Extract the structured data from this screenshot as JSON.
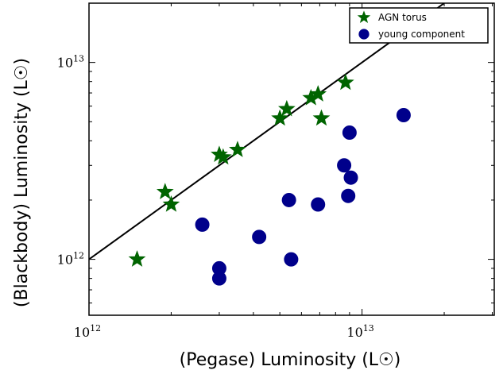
{
  "chart_data": {
    "type": "scatter",
    "title": "",
    "xlabel": "(Pegase) Luminosity (L☉)",
    "ylabel": "(Blackbody) Luminosity (L☉)",
    "xscale": "log",
    "yscale": "log",
    "xlim": [
      1000000000000.0,
      30500000000000.0
    ],
    "ylim": [
      520000000000.0,
      20000000000000.0
    ],
    "x_ticks": [
      {
        "value": 1000000000000.0,
        "base": "10",
        "exp": "12"
      },
      {
        "value": 10000000000000.0,
        "base": "10",
        "exp": "13"
      }
    ],
    "y_ticks": [
      {
        "value": 1000000000000.0,
        "base": "10",
        "exp": "12"
      },
      {
        "value": 10000000000000.0,
        "base": "10",
        "exp": "13"
      }
    ],
    "legend_position": "top-right",
    "one_to_one_line": true,
    "series": [
      {
        "name": "AGN torus",
        "marker": "star",
        "color": "#006400",
        "points": [
          [
            1500000000000.0,
            1000000000000.0
          ],
          [
            1900000000000.0,
            2200000000000.0
          ],
          [
            2000000000000.0,
            1900000000000.0
          ],
          [
            3000000000000.0,
            3400000000000.0
          ],
          [
            3100000000000.0,
            3300000000000.0
          ],
          [
            3500000000000.0,
            3600000000000.0
          ],
          [
            5000000000000.0,
            5200000000000.0
          ],
          [
            5300000000000.0,
            5800000000000.0
          ],
          [
            6500000000000.0,
            6600000000000.0
          ],
          [
            6900000000000.0,
            6900000000000.0
          ],
          [
            7100000000000.0,
            5200000000000.0
          ],
          [
            8700000000000.0,
            7900000000000.0
          ]
        ]
      },
      {
        "name": "young component",
        "marker": "circle",
        "color": "#00008b",
        "points": [
          [
            2600000000000.0,
            1500000000000.0
          ],
          [
            3000000000000.0,
            900000000000.0
          ],
          [
            3000000000000.0,
            800000000000.0
          ],
          [
            4200000000000.0,
            1300000000000.0
          ],
          [
            5400000000000.0,
            2000000000000.0
          ],
          [
            5500000000000.0,
            1000000000000.0
          ],
          [
            6900000000000.0,
            1900000000000.0
          ],
          [
            8600000000000.0,
            3000000000000.0
          ],
          [
            8900000000000.0,
            2100000000000.0
          ],
          [
            9000000000000.0,
            4400000000000.0
          ],
          [
            9100000000000.0,
            2600000000000.0
          ],
          [
            14200000000000.0,
            5400000000000.0
          ]
        ]
      }
    ]
  }
}
